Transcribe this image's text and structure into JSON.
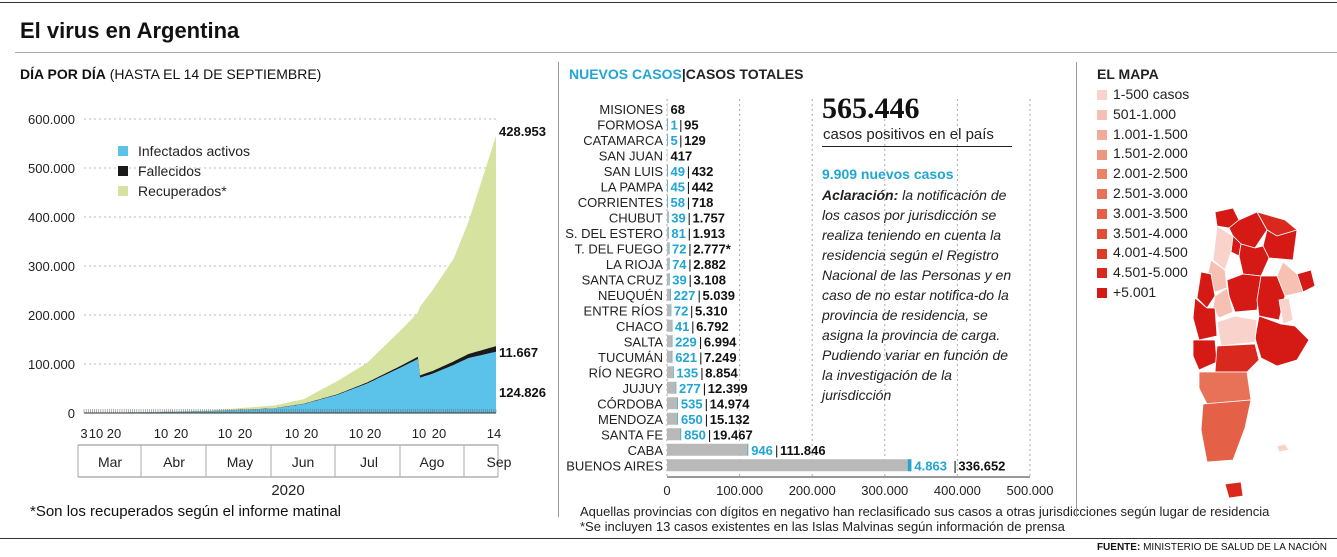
{
  "title": "El virus en Argentina",
  "left": {
    "subtitle_bold": "DÍA POR DÍA",
    "subtitle_rest": " (HASTA EL 14 DE SEPTIEMBRE)",
    "footnote": "*Son los recuperados según el informe matinal",
    "year": "2020",
    "value_labels": {
      "recuperados": "428.953",
      "fallecidos": "11.667",
      "activos": "124.826"
    }
  },
  "middle": {
    "header_nuevos": "NUEVOS CASOS",
    "header_sep": "|",
    "header_totales": "CASOS TOTALES",
    "note1": "Aquellas provincias con dígitos en negativo han reclasificado sus casos a otras jurisdicciones según lugar de residencia",
    "note2": "*Se incluyen 13 casos existentes en las Islas Malvinas según información de prensa"
  },
  "summary": {
    "total": "565.446",
    "total_caption": "casos positivos en el país",
    "new_cases": "9.909 nuevos casos",
    "aclaracion_label": "Aclaración:",
    "aclaracion_text": " la notificación de los casos por jurisdicción se realiza teniendo en cuenta la residencia según el Registro Nacional de las Personas y en caso de no estar notifica-do la provincia de residencia, se asigna la provincia de carga. Pudiendo variar en función de la investigación de la jurisdicción"
  },
  "map": {
    "title": "EL MAPA",
    "legend": [
      {
        "label": "1-500 casos",
        "color": "#f9d3cb"
      },
      {
        "label": "501-1.000",
        "color": "#f6c0b2"
      },
      {
        "label": "1.001-1.500",
        "color": "#f2ab99"
      },
      {
        "label": "1.501-2.000",
        "color": "#ee9780"
      },
      {
        "label": "2.001-2.500",
        "color": "#ea8468"
      },
      {
        "label": "2.501-3.000",
        "color": "#e77257"
      },
      {
        "label": "3.001-3.500",
        "color": "#e46046"
      },
      {
        "label": "3.501-4.000",
        "color": "#e04d36"
      },
      {
        "label": "4.001-4.500",
        "color": "#dd3a29"
      },
      {
        "label": "4.501-5.000",
        "color": "#d9281e"
      },
      {
        "label": "+5.001",
        "color": "#d51a16"
      }
    ]
  },
  "footer": {
    "label": "FUENTE:",
    "source": "MINISTERIO DE SALUD DE LA NACIÓN"
  },
  "chart_data": [
    {
      "type": "area",
      "title": "DÍA POR DÍA (HASTA EL 14 DE SEPTIEMBRE)",
      "xlabel": "2020",
      "ylim": [
        0,
        600000
      ],
      "yticks": [
        "0",
        "100.000",
        "200.000",
        "300.000",
        "400.000",
        "500.000",
        "600.000"
      ],
      "x_months": [
        "Mar",
        "Abr",
        "May",
        "Jun",
        "Jul",
        "Ago",
        "Sep"
      ],
      "x_day_ticks": [
        "3",
        "10",
        "20",
        "10",
        "20",
        "10",
        "20",
        "10",
        "20",
        "10",
        "20",
        "10",
        "20",
        "14"
      ],
      "legend": [
        "Infectados activos",
        "Fallecidos",
        "Recuperados*"
      ],
      "colors": {
        "activos": "#5bc2ea",
        "fallecidos": "#1a1a1a",
        "recuperados": "#d6e3a0"
      },
      "series": [
        {
          "name": "Infectados activos",
          "x": [
            "2020-03-03",
            "2020-04-01",
            "2020-05-01",
            "2020-06-01",
            "2020-06-15",
            "2020-07-01",
            "2020-07-15",
            "2020-08-01",
            "2020-08-08",
            "2020-08-09",
            "2020-08-15",
            "2020-08-25",
            "2020-09-01",
            "2020-09-14"
          ],
          "values": [
            0,
            1500,
            3500,
            9000,
            18000,
            37000,
            60000,
            95000,
            110000,
            72000,
            80000,
            98000,
            112000,
            124826
          ]
        },
        {
          "name": "Fallecidos",
          "x": [
            "2020-03-03",
            "2020-04-01",
            "2020-05-01",
            "2020-06-01",
            "2020-07-01",
            "2020-08-01",
            "2020-09-01",
            "2020-09-14"
          ],
          "values": [
            0,
            30,
            300,
            560,
            1300,
            3600,
            8500,
            11667
          ]
        },
        {
          "name": "Recuperados*",
          "x": [
            "2020-03-03",
            "2020-04-01",
            "2020-05-01",
            "2020-06-01",
            "2020-06-15",
            "2020-07-01",
            "2020-07-15",
            "2020-08-01",
            "2020-08-08",
            "2020-08-09",
            "2020-08-15",
            "2020-08-25",
            "2020-09-01",
            "2020-09-14"
          ],
          "values": [
            0,
            200,
            1500,
            5500,
            9500,
            27000,
            40000,
            75000,
            90000,
            140000,
            165000,
            210000,
            270000,
            428953
          ]
        }
      ]
    },
    {
      "type": "bar",
      "xlim": [
        0,
        500000
      ],
      "xticks": [
        "0",
        "100.000",
        "200.000",
        "300.000",
        "400.000",
        "500.000"
      ],
      "categories": [
        "MISIONES",
        "FORMOSA",
        "CATAMARCA",
        "SAN JUAN",
        "SAN LUIS",
        "LA PAMPA",
        "CORRIENTES",
        "CHUBUT",
        "S. DEL ESTERO",
        "T. DEL FUEGO",
        "LA RIOJA",
        "SANTA CRUZ",
        "NEUQUÉN",
        "ENTRE RÍOS",
        "CHACO",
        "SALTA",
        "TUCUMÁN",
        "RÍO NEGRO",
        "JUJUY",
        "CÓRDOBA",
        "MENDOZA",
        "SANTA FE",
        "CABA",
        "BUENOS AIRES"
      ],
      "series": [
        {
          "name": "NUEVOS CASOS",
          "values": [
            null,
            1,
            5,
            null,
            49,
            45,
            58,
            39,
            81,
            72,
            74,
            39,
            227,
            72,
            41,
            229,
            621,
            135,
            277,
            535,
            650,
            850,
            946,
            4863
          ],
          "labels": [
            "",
            "1",
            "5",
            "",
            "49",
            "45",
            "58",
            "39",
            "81",
            "72",
            "74",
            "39",
            "227",
            "72",
            "41",
            "229",
            "621",
            "135",
            "277",
            "535",
            "650",
            "850",
            "946",
            "4.863"
          ]
        },
        {
          "name": "CASOS TOTALES",
          "values": [
            68,
            95,
            129,
            417,
            432,
            442,
            718,
            1757,
            1913,
            2777,
            2882,
            3108,
            5039,
            5310,
            6792,
            6994,
            7249,
            8854,
            12399,
            14974,
            15132,
            19467,
            111846,
            336652
          ],
          "labels": [
            "68",
            "95",
            "129",
            "417",
            "432",
            "442",
            "718",
            "1.757",
            "1.913",
            "2.777*",
            "2.882",
            "3.108",
            "5.039",
            "5.310",
            "6.792",
            "6.994",
            "7.249",
            "8.854",
            "12.399",
            "14.974",
            "15.132",
            "19.467",
            "111.846",
            "336.652"
          ]
        }
      ]
    }
  ]
}
